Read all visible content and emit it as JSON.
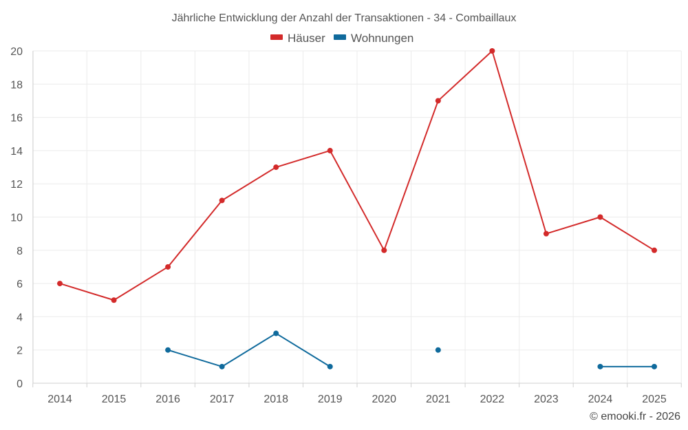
{
  "chart_data": {
    "type": "line",
    "title": "Jährliche Entwicklung der Anzahl der Transaktionen - 34 - Combaillaux",
    "categories": [
      "2014",
      "2015",
      "2016",
      "2017",
      "2018",
      "2019",
      "2020",
      "2021",
      "2022",
      "2023",
      "2024",
      "2025"
    ],
    "series": [
      {
        "name": "Häuser",
        "color": "#d32a2a",
        "values": [
          6,
          5,
          7,
          11,
          13,
          14,
          8,
          17,
          20,
          9,
          10,
          8
        ]
      },
      {
        "name": "Wohnungen",
        "color": "#0f6a9c",
        "values": [
          null,
          null,
          2,
          1,
          3,
          1,
          null,
          2,
          null,
          null,
          1,
          1
        ]
      }
    ],
    "yticks": [
      0,
      2,
      4,
      6,
      8,
      10,
      12,
      14,
      16,
      18,
      20
    ],
    "ylim": [
      0,
      20
    ],
    "grid": true,
    "legend": "top-center",
    "xlabel": "",
    "ylabel": ""
  },
  "credit": "© emooki.fr - 2026"
}
